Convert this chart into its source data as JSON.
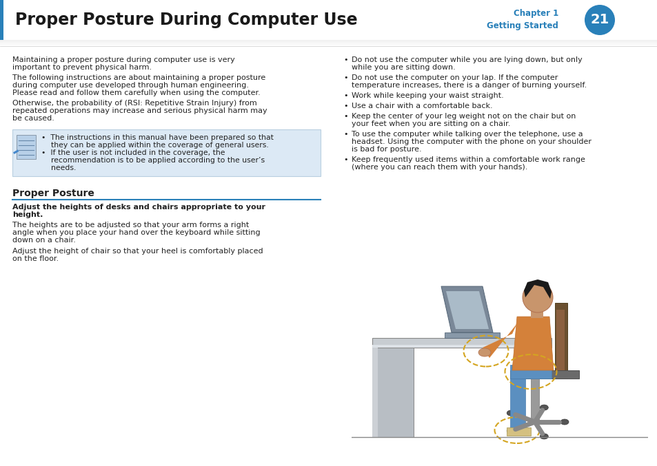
{
  "title": "Proper Posture During Computer Use",
  "chapter_label": "Chapter 1",
  "chapter_sub": "Getting Started",
  "page_num": "21",
  "chapter_color": "#2980b9",
  "page_circle_color": "#2980b9",
  "title_color": "#1a1a1a",
  "body_color": "#222222",
  "note_bg": "#dce9f5",
  "note_border": "#b8cfe0",
  "divider_color": "#2980b9",
  "header_border_left": "#2980b9",
  "para1": "Maintaining a proper posture during computer use is very\nimportant to prevent physical harm.",
  "para2": "The following instructions are about maintaining a proper posture\nduring computer use developed through human engineering.\nPlease read and follow them carefully when using the computer.",
  "para3": "Otherwise, the probability of (RSI: Repetitive Strain Injury) from\nrepeated operations may increase and serious physical harm may\nbe caused.",
  "note_line1a": "•  The instructions in this manual have been prepared so that",
  "note_line1b": "    they can be applied within the coverage of general users.",
  "note_line2a": "•  If the user is not included in the coverage, the",
  "note_line2b": "    recommendation is to be applied according to the user’s",
  "note_line2c": "    needs.",
  "proper_posture_heading": "Proper Posture",
  "adjust_heading": "Adjust the heights of desks and chairs appropriate to your\nheight.",
  "adjust_para1": "The heights are to be adjusted so that your arm forms a right\nangle when you place your hand over the keyboard while sitting\ndown on a chair.",
  "adjust_para2": "Adjust the height of chair so that your heel is comfortably placed\non the floor.",
  "right_bullets": [
    "Do not use the computer while you are lying down, but only\nwhile you are sitting down.",
    "Do not use the computer on your lap. If the computer\ntemperature increases, there is a danger of burning yourself.",
    "Work while keeping your waist straight.",
    "Use a chair with a comfortable back.",
    "Keep the center of your leg weight not on the chair but on\nyour feet when you are sitting on a chair.",
    "To use the computer while talking over the telephone, use a\nheadset. Using the computer with the phone on your shoulder\nis bad for posture.",
    "Keep frequently used items within a comfortable work range\n(where you can reach them with your hands)."
  ],
  "bg_color": "#ffffff",
  "text_fontsize": 8.0,
  "title_fontsize": 17,
  "note_fontsize": 7.8
}
